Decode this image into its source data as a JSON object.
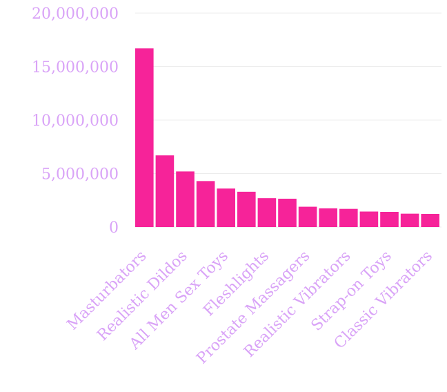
{
  "chart_data": {
    "type": "bar",
    "categories": [
      "Masturbators",
      "",
      "Realistic Dildos",
      "",
      "All Men Sex Toys",
      "",
      "Fleshlights",
      "",
      "Prostate Massagers",
      "",
      "Realistic Vibrators",
      "",
      "Strap-on Toys",
      "",
      "Classic Vibrators"
    ],
    "values": [
      16700000,
      6700000,
      5200000,
      4300000,
      3600000,
      3300000,
      2700000,
      2650000,
      1900000,
      1750000,
      1700000,
      1450000,
      1420000,
      1250000,
      1230000
    ],
    "yticks": [
      "0",
      "5,000,000",
      "10,000,000",
      "15,000,000",
      "20,000,000"
    ],
    "ylim": [
      0,
      20000000
    ],
    "grid": true,
    "colors": {
      "bar": "#f62399",
      "label": "#d9a3f7",
      "grid": "#ececec"
    }
  }
}
